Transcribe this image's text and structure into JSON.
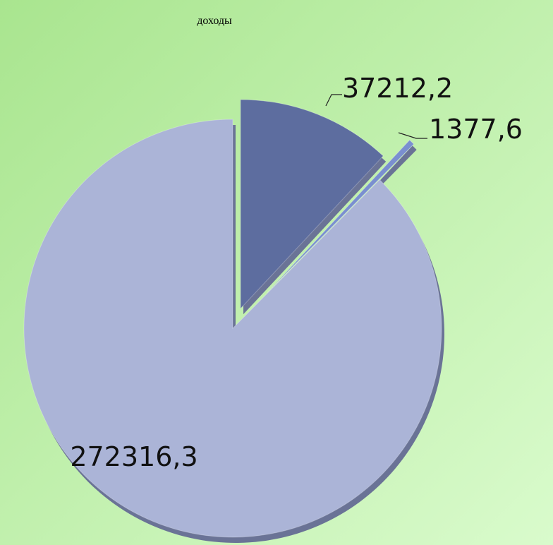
{
  "chart_data": {
    "type": "pie",
    "title": "доходы",
    "values": [
      37212.2,
      1377.6,
      272316.3
    ],
    "value_labels": [
      "37212,2",
      "1377,6",
      "272316,3"
    ],
    "colors": [
      "#5d6d9f",
      "#7a8fd0",
      "#abb4d7"
    ]
  }
}
